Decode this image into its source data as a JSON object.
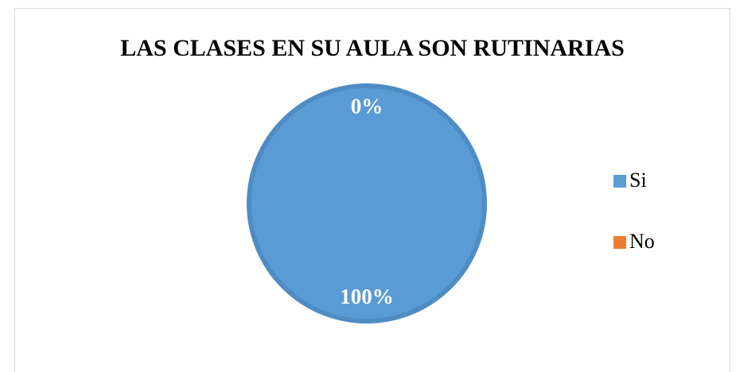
{
  "chart_data": {
    "type": "pie",
    "title": "LAS CLASES EN SU AULA SON RUTINARIAS",
    "categories": [
      "Si",
      "No"
    ],
    "values": [
      100,
      0
    ],
    "value_labels": [
      "100%",
      "0%"
    ],
    "colors": [
      "#5b9bd5",
      "#ed7d31"
    ],
    "legend": "right"
  }
}
